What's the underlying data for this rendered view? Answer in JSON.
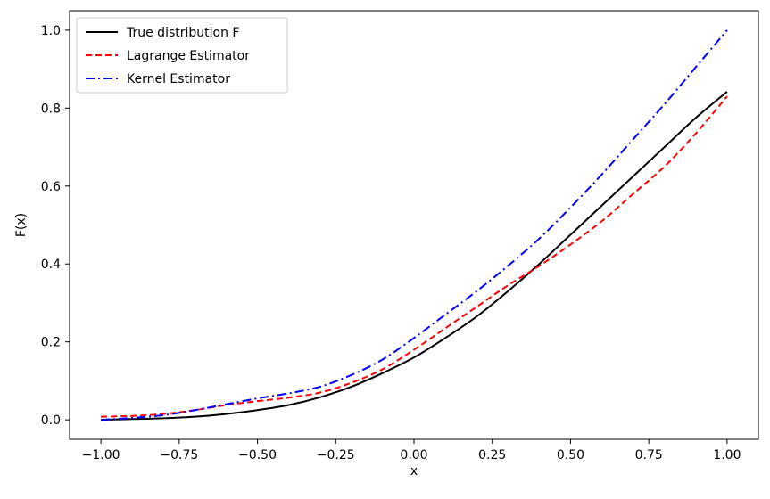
{
  "chart_data": {
    "type": "line",
    "title": "",
    "xlabel": "x",
    "ylabel": "F(x)",
    "xlim": [
      -1.1,
      1.1
    ],
    "ylim": [
      -0.05,
      1.05
    ],
    "grid": false,
    "legend_position": "top-left",
    "x_ticks": [
      -1.0,
      -0.75,
      -0.5,
      -0.25,
      0.0,
      0.25,
      0.5,
      0.75,
      1.0
    ],
    "x_tick_labels": [
      "−1.00",
      "−0.75",
      "−0.50",
      "−0.25",
      "0.00",
      "0.25",
      "0.50",
      "0.75",
      "1.00"
    ],
    "y_ticks": [
      0.0,
      0.2,
      0.4,
      0.6,
      0.8,
      1.0
    ],
    "y_tick_labels": [
      "0.0",
      "0.2",
      "0.4",
      "0.6",
      "0.8",
      "1.0"
    ],
    "x": [
      -1.0,
      -0.9,
      -0.8,
      -0.7,
      -0.6,
      -0.5,
      -0.4,
      -0.3,
      -0.2,
      -0.1,
      0.0,
      0.1,
      0.2,
      0.3,
      0.4,
      0.5,
      0.6,
      0.7,
      0.8,
      0.9,
      1.0
    ],
    "series": [
      {
        "name": "True distribution F",
        "color": "#000000",
        "style": "solid",
        "values": [
          0.0,
          0.002,
          0.004,
          0.008,
          0.015,
          0.025,
          0.038,
          0.058,
          0.085,
          0.12,
          0.16,
          0.21,
          0.265,
          0.33,
          0.4,
          0.475,
          0.55,
          0.625,
          0.7,
          0.775,
          0.842
        ]
      },
      {
        "name": "Lagrange Estimator",
        "color": "#ff0000",
        "style": "dashed",
        "values": [
          0.008,
          0.01,
          0.015,
          0.025,
          0.038,
          0.048,
          0.057,
          0.07,
          0.095,
          0.13,
          0.18,
          0.235,
          0.29,
          0.345,
          0.395,
          0.45,
          0.51,
          0.58,
          0.65,
          0.735,
          0.83
        ]
      },
      {
        "name": "Kernel Estimator",
        "color": "#0000ff",
        "style": "dashdot",
        "values": [
          0.0,
          0.005,
          0.012,
          0.025,
          0.04,
          0.055,
          0.068,
          0.085,
          0.115,
          0.155,
          0.21,
          0.27,
          0.33,
          0.395,
          0.465,
          0.545,
          0.63,
          0.72,
          0.81,
          0.905,
          1.0
        ]
      }
    ]
  }
}
